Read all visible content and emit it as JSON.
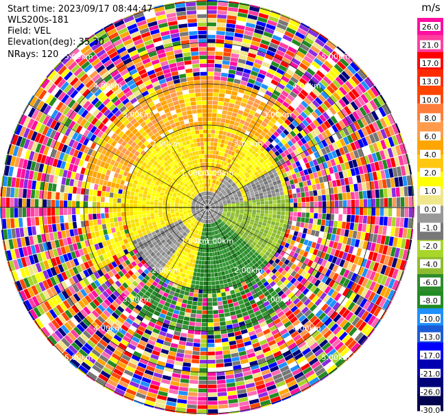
{
  "header": {
    "start_time": "Start time: 2023/09/17 08:44:47",
    "site": "WLS200s-181",
    "field": "Field: VEL",
    "elevation": "Elevation(deg): 35.30",
    "nrays": "NRays: 120"
  },
  "chart_data": {
    "type": "ppi",
    "title": "",
    "nrays": 120,
    "range_rings": [
      {
        "label": "1.00km"
      },
      {
        "label": "2.00km"
      },
      {
        "label": "3.00km"
      },
      {
        "label": "4.00km"
      },
      {
        "label": "5.00km"
      }
    ],
    "colorbar": {
      "unit": "m/s",
      "ticks": [
        "26.0",
        "21.0",
        "17.0",
        "13.0",
        "10.0",
        "8.0",
        "6.0",
        "4.0",
        "2.0",
        "1.0",
        "0.0",
        "-1.0",
        "-2.0",
        "-4.0",
        "-6.0",
        "-8.0",
        "-10.0",
        "-13.0",
        "-17.0",
        "-21.0",
        "-26.0",
        "-30.0"
      ],
      "colors": [
        "#ff0ea0",
        "#ff3d9f",
        "#ff0000",
        "#ff2a00",
        "#ff4500",
        "#ff7d3a",
        "#ff9b4b",
        "#ffa500",
        "#ffc70f",
        "#ffff00",
        "#f0e68c",
        "#999999",
        "#777777",
        "#a8d62a",
        "#8fbc2f",
        "#2e8b2e",
        "#228b22",
        "#1e90ff",
        "#1a5cd6",
        "#0000ff",
        "#0000b0",
        "#00007a",
        "#000050"
      ]
    },
    "noise_colors": [
      "#ff0ea0",
      "#ff3d9f",
      "#ff0000",
      "#ff4500",
      "#ff9b4b",
      "#ffa500",
      "#ffff00",
      "#f0e68c",
      "#777777",
      "#a8d62a",
      "#228b22",
      "#1e90ff",
      "#0000ff",
      "#00007a",
      "#8a2be2",
      "#ff69b4"
    ]
  }
}
